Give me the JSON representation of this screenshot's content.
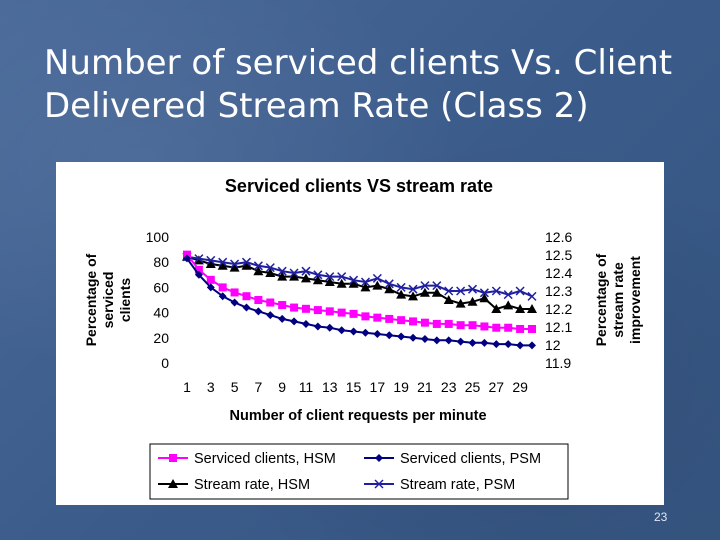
{
  "slide": {
    "title_line1": "Number of serviced clients Vs. Client",
    "title_line2": "Delivered Stream Rate (Class 2)",
    "page_number": "23"
  },
  "colors": {
    "hsm_serviced": "#ff00ff",
    "psm_serviced": "#000080",
    "hsm_stream": "#000000",
    "psm_stream": "#1f1f9f"
  },
  "chart_data": {
    "type": "line",
    "title": "Serviced clients VS stream rate",
    "xlabel": "Number of client requests per minute",
    "ylabel_left": [
      "Percentage of",
      "serviced",
      "clients"
    ],
    "ylabel_right": [
      "Percentage of",
      "stream rate",
      "improvement"
    ],
    "x": [
      1,
      2,
      3,
      4,
      5,
      6,
      7,
      8,
      9,
      10,
      11,
      12,
      13,
      14,
      15,
      16,
      17,
      18,
      19,
      20,
      21,
      22,
      23,
      24,
      25,
      26,
      27,
      28,
      29,
      30
    ],
    "x_tick_labels": [
      "1",
      "3",
      "5",
      "7",
      "9",
      "11",
      "13",
      "15",
      "17",
      "19",
      "21",
      "23",
      "25",
      "27",
      "29"
    ],
    "y_left_ticks": [
      "0",
      "20",
      "40",
      "60",
      "80",
      "100"
    ],
    "y_right_ticks": [
      "11.9",
      "12",
      "12.1",
      "12.2",
      "12.3",
      "12.4",
      "12.5",
      "12.6"
    ],
    "ylim_left": [
      0,
      100
    ],
    "ylim_right": [
      11.9,
      12.6
    ],
    "legend_position": "bottom",
    "series": [
      {
        "name": "Serviced clients, HSM",
        "axis": "left",
        "marker": "square",
        "color": "#ff00ff",
        "values": [
          86,
          74,
          66,
          60,
          56,
          53,
          50,
          48,
          46,
          44,
          43,
          42,
          41,
          40,
          39,
          37,
          36,
          35,
          34,
          33,
          32,
          31,
          31,
          30,
          30,
          29,
          28,
          28,
          27,
          27
        ]
      },
      {
        "name": "Serviced clients, PSM",
        "axis": "left",
        "marker": "diamond",
        "color": "#000080",
        "values": [
          83,
          70,
          60,
          53,
          48,
          44,
          41,
          38,
          35,
          33,
          31,
          29,
          28,
          26,
          25,
          24,
          23,
          22,
          21,
          20,
          19,
          18,
          18,
          17,
          16,
          16,
          15,
          15,
          14,
          14
        ]
      },
      {
        "name": "Stream rate, HSM",
        "axis": "right",
        "marker": "triangle",
        "color": "#000000",
        "values": [
          12.49,
          12.47,
          12.45,
          12.44,
          12.43,
          12.44,
          12.41,
          12.4,
          12.38,
          12.38,
          12.37,
          12.36,
          12.35,
          12.34,
          12.34,
          12.32,
          12.33,
          12.31,
          12.28,
          12.27,
          12.29,
          12.29,
          12.25,
          12.23,
          12.24,
          12.26,
          12.2,
          12.22,
          12.2,
          12.2
        ]
      },
      {
        "name": "Stream rate, PSM",
        "axis": "right",
        "marker": "x",
        "color": "#1f1f9f",
        "values": [
          12.49,
          12.48,
          12.47,
          12.46,
          12.45,
          12.46,
          12.44,
          12.43,
          12.41,
          12.4,
          12.41,
          12.39,
          12.38,
          12.38,
          12.36,
          12.35,
          12.37,
          12.34,
          12.32,
          12.31,
          12.33,
          12.33,
          12.3,
          12.3,
          12.31,
          12.29,
          12.3,
          12.28,
          12.3,
          12.27
        ]
      }
    ]
  }
}
